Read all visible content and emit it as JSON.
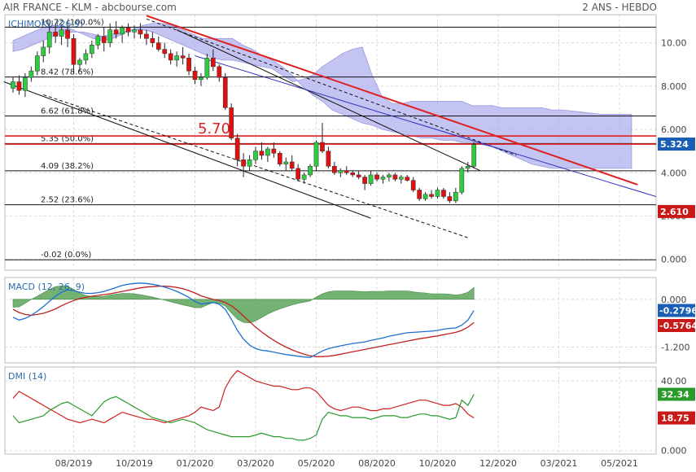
{
  "header": {
    "left": "AIR FRANCE - KLM - abcbourse.com",
    "right": "2 ANS - HEBDO"
  },
  "colors": {
    "up": "#2ecc40",
    "down": "#e01010",
    "cloud": "#b0b0ee",
    "resistance": "#e02020",
    "trend_blue": "#3030c0",
    "macd_line": "#1f6fd0",
    "signal_line": "#c02020",
    "histogram": "#5aa55a",
    "di_plus": "#2a9a2a",
    "di_minus": "#d02020",
    "panel_label": "#2b6cb0"
  },
  "chart_data": [
    {
      "type": "candlestick",
      "name": "price",
      "label": "ICHIMOKU (26,9)",
      "ylim": [
        -0.5,
        11.3
      ],
      "yticks": [
        "0.000",
        "2.000",
        "4.000",
        "6.000",
        "8.000",
        "10.00"
      ],
      "ytick_values": [
        0,
        2,
        4,
        6,
        8,
        10
      ],
      "xtick_labels": [
        "08/2019",
        "10/2019",
        "01/2020",
        "03/2020",
        "05/2020",
        "08/2020",
        "10/2020",
        "12/2020",
        "03/2021",
        "05/2021"
      ],
      "xtick_weeks": [
        10,
        20,
        30,
        40,
        50,
        60,
        70,
        80,
        90,
        100
      ],
      "fib_levels": [
        {
          "value": 10.72,
          "label": "10.72  (100.0%)"
        },
        {
          "value": 8.42,
          "label": "8.42  (78.6%)"
        },
        {
          "value": 6.62,
          "label": "6.62  (61.8%)"
        },
        {
          "value": 5.35,
          "label": "5.35  (50.0%)"
        },
        {
          "value": 4.09,
          "label": "4.09  (38.2%)"
        },
        {
          "value": 2.52,
          "label": "2.52  (23.6%)"
        },
        {
          "value": -0.02,
          "label": "-0.02  (0.0%)"
        }
      ],
      "resistance_levels": [
        5.7,
        5.324
      ],
      "annotation": "5.70",
      "last_price": "5.324",
      "support_marker": "2.610",
      "candles": [
        [
          7.9,
          8.4,
          7.7,
          8.2
        ],
        [
          8.2,
          8.5,
          7.6,
          7.8
        ],
        [
          7.8,
          8.6,
          7.5,
          8.4
        ],
        [
          8.4,
          8.9,
          8.2,
          8.7
        ],
        [
          8.7,
          9.6,
          8.5,
          9.4
        ],
        [
          9.4,
          10.1,
          9.1,
          9.8
        ],
        [
          9.8,
          10.9,
          9.5,
          10.5
        ],
        [
          10.5,
          10.9,
          10.0,
          10.3
        ],
        [
          10.3,
          10.8,
          9.9,
          10.6
        ],
        [
          10.6,
          10.8,
          9.8,
          10.2
        ],
        [
          10.2,
          10.4,
          8.6,
          9.0
        ],
        [
          9.0,
          9.3,
          8.7,
          9.2
        ],
        [
          9.2,
          9.7,
          9.0,
          9.5
        ],
        [
          9.5,
          10.1,
          9.3,
          9.9
        ],
        [
          9.9,
          10.4,
          9.7,
          10.3
        ],
        [
          10.3,
          10.7,
          9.6,
          10.0
        ],
        [
          10.0,
          10.9,
          9.8,
          10.6
        ],
        [
          10.6,
          11.0,
          10.2,
          10.4
        ],
        [
          10.4,
          10.8,
          10.0,
          10.7
        ],
        [
          10.7,
          10.9,
          10.3,
          10.5
        ],
        [
          10.5,
          10.8,
          10.2,
          10.6
        ],
        [
          10.6,
          10.9,
          10.2,
          10.4
        ],
        [
          10.4,
          10.6,
          9.9,
          10.2
        ],
        [
          10.2,
          10.5,
          9.8,
          10.0
        ],
        [
          10.0,
          10.3,
          9.6,
          9.7
        ],
        [
          9.7,
          10.0,
          9.3,
          9.5
        ],
        [
          9.5,
          9.7,
          9.0,
          9.2
        ],
        [
          9.2,
          9.6,
          8.9,
          9.4
        ],
        [
          9.4,
          9.8,
          9.0,
          9.3
        ],
        [
          9.3,
          9.5,
          8.5,
          8.7
        ],
        [
          8.7,
          8.9,
          8.1,
          8.3
        ],
        [
          8.3,
          8.6,
          8.0,
          8.4
        ],
        [
          8.4,
          9.5,
          8.3,
          9.3
        ],
        [
          9.3,
          9.7,
          8.7,
          8.9
        ],
        [
          8.9,
          9.0,
          8.2,
          8.4
        ],
        [
          8.4,
          8.6,
          6.9,
          7.0
        ],
        [
          7.0,
          7.2,
          5.5,
          5.6
        ],
        [
          5.6,
          5.8,
          4.3,
          4.6
        ],
        [
          4.6,
          4.9,
          3.8,
          4.3
        ],
        [
          4.3,
          4.8,
          4.1,
          4.6
        ],
        [
          4.6,
          5.2,
          4.4,
          5.0
        ],
        [
          5.0,
          5.4,
          4.6,
          4.8
        ],
        [
          4.8,
          5.2,
          4.5,
          5.1
        ],
        [
          5.1,
          5.4,
          4.7,
          4.9
        ],
        [
          4.9,
          5.0,
          4.3,
          4.4
        ],
        [
          4.4,
          4.7,
          4.1,
          4.5
        ],
        [
          4.5,
          4.8,
          4.1,
          4.2
        ],
        [
          4.2,
          4.4,
          3.6,
          3.7
        ],
        [
          3.7,
          4.0,
          3.5,
          3.9
        ],
        [
          3.9,
          4.4,
          3.8,
          4.3
        ],
        [
          4.3,
          5.5,
          4.1,
          5.4
        ],
        [
          5.4,
          6.3,
          4.9,
          5.0
        ],
        [
          5.0,
          5.2,
          4.2,
          4.3
        ],
        [
          4.3,
          4.5,
          3.9,
          4.0
        ],
        [
          4.0,
          4.2,
          3.8,
          4.1
        ],
        [
          4.1,
          4.3,
          3.9,
          4.0
        ],
        [
          4.0,
          4.1,
          3.8,
          3.9
        ],
        [
          3.9,
          4.1,
          3.7,
          3.8
        ],
        [
          3.8,
          3.9,
          3.2,
          3.5
        ],
        [
          3.5,
          4.1,
          3.4,
          3.9
        ],
        [
          3.9,
          4.0,
          3.6,
          3.7
        ],
        [
          3.7,
          3.9,
          3.5,
          3.8
        ],
        [
          3.8,
          4.0,
          3.6,
          3.9
        ],
        [
          3.9,
          4.0,
          3.6,
          3.7
        ],
        [
          3.7,
          3.9,
          3.5,
          3.8
        ],
        [
          3.8,
          3.9,
          3.6,
          3.65
        ],
        [
          3.65,
          3.8,
          3.1,
          3.2
        ],
        [
          3.2,
          3.3,
          2.7,
          2.8
        ],
        [
          2.8,
          3.1,
          2.7,
          3.0
        ],
        [
          3.0,
          3.2,
          2.8,
          2.9
        ],
        [
          2.9,
          3.3,
          2.8,
          3.2
        ],
        [
          3.2,
          3.3,
          2.8,
          2.9
        ],
        [
          2.9,
          3.1,
          2.6,
          2.7
        ],
        [
          2.7,
          3.3,
          2.6,
          3.1
        ],
        [
          3.1,
          4.3,
          3.0,
          4.2
        ],
        [
          4.2,
          4.5,
          4.0,
          4.3
        ],
        [
          4.3,
          5.4,
          4.2,
          5.3
        ]
      ],
      "cloud_a": [
        9.6,
        9.7,
        9.9,
        10.1,
        10.3,
        10.4,
        10.5,
        10.5,
        10.4,
        10.3,
        10.4,
        10.5,
        10.6,
        10.6,
        10.5,
        10.3,
        10.1,
        9.9,
        9.7,
        9.5,
        9.3,
        9.2,
        9.2,
        9.1,
        9.0,
        8.9,
        8.8,
        8.5,
        8.2,
        8.3,
        8.5,
        8.9,
        9.2,
        9.5,
        9.7,
        9.8,
        8.5,
        7.5,
        7.2,
        7.2,
        7.3,
        7.3,
        7.3,
        7.3,
        7.3,
        7.3,
        7.1,
        7.1,
        7.1,
        7.0,
        7.0,
        7.0,
        7.0,
        7.0,
        6.9,
        6.9,
        6.85,
        6.8,
        6.75,
        6.7,
        6.7,
        6.7,
        6.7
      ],
      "cloud_b": [
        10.1,
        10.3,
        10.5,
        10.7,
        10.8,
        10.8,
        10.6,
        10.4,
        10.2,
        10.1,
        10.2,
        10.4,
        10.6,
        10.8,
        10.9,
        10.9,
        10.8,
        10.6,
        10.4,
        10.2,
        10.2,
        10.2,
        10.2,
        9.9,
        9.7,
        9.4,
        9.2,
        8.9,
        8.5,
        8.0,
        7.6,
        7.3,
        6.9,
        6.7,
        6.5,
        6.3,
        6.2,
        6.0,
        5.9,
        5.8,
        5.7,
        5.6,
        5.6,
        5.5,
        5.5,
        5.4,
        5.4,
        5.3,
        5.2,
        5.0,
        4.8,
        4.6,
        4.4,
        4.3,
        4.2,
        4.2,
        4.2,
        4.2,
        4.2,
        4.2,
        4.2,
        4.2,
        4.2
      ],
      "cloud_start_week": 0,
      "cloud_end_week": 102
    },
    {
      "type": "line",
      "name": "macd",
      "label": "MACD (12, 26, 9)",
      "ylim": [
        -1.6,
        0.55
      ],
      "yticks": [
        "0.000",
        "-1.200"
      ],
      "ytick_values": [
        0,
        -1.2
      ],
      "macd_last": "-0.2796",
      "signal_last": "-0.5764",
      "macd": [
        -0.45,
        -0.52,
        -0.48,
        -0.4,
        -0.3,
        -0.18,
        -0.05,
        0.08,
        0.18,
        0.24,
        0.22,
        0.18,
        0.15,
        0.15,
        0.17,
        0.2,
        0.25,
        0.3,
        0.35,
        0.38,
        0.4,
        0.41,
        0.4,
        0.38,
        0.35,
        0.31,
        0.26,
        0.2,
        0.13,
        0.05,
        -0.05,
        -0.12,
        -0.1,
        -0.08,
        -0.12,
        -0.25,
        -0.5,
        -0.78,
        -1.0,
        -1.15,
        -1.24,
        -1.28,
        -1.3,
        -1.33,
        -1.36,
        -1.39,
        -1.41,
        -1.43,
        -1.45,
        -1.46,
        -1.38,
        -1.3,
        -1.24,
        -1.2,
        -1.17,
        -1.14,
        -1.11,
        -1.09,
        -1.07,
        -1.03,
        -1.0,
        -0.97,
        -0.93,
        -0.9,
        -0.87,
        -0.84,
        -0.83,
        -0.82,
        -0.81,
        -0.8,
        -0.78,
        -0.75,
        -0.73,
        -0.72,
        -0.65,
        -0.52,
        -0.28
      ],
      "signal": [
        -0.25,
        -0.33,
        -0.38,
        -0.4,
        -0.38,
        -0.35,
        -0.3,
        -0.24,
        -0.16,
        -0.09,
        -0.03,
        0.02,
        0.05,
        0.08,
        0.1,
        0.12,
        0.14,
        0.17,
        0.2,
        0.23,
        0.26,
        0.29,
        0.31,
        0.32,
        0.33,
        0.33,
        0.32,
        0.3,
        0.27,
        0.22,
        0.16,
        0.09,
        0.04,
        0.0,
        -0.03,
        -0.08,
        -0.16,
        -0.28,
        -0.42,
        -0.56,
        -0.7,
        -0.82,
        -0.93,
        -1.03,
        -1.12,
        -1.2,
        -1.27,
        -1.33,
        -1.38,
        -1.42,
        -1.44,
        -1.44,
        -1.43,
        -1.41,
        -1.38,
        -1.35,
        -1.32,
        -1.29,
        -1.26,
        -1.23,
        -1.2,
        -1.17,
        -1.14,
        -1.11,
        -1.08,
        -1.05,
        -1.02,
        -0.99,
        -0.97,
        -0.94,
        -0.92,
        -0.89,
        -0.86,
        -0.83,
        -0.78,
        -0.7,
        -0.58
      ]
    },
    {
      "type": "line",
      "name": "dmi",
      "label": "DMI (14)",
      "ylim": [
        -2,
        48
      ],
      "yticks": [
        "40.00",
        "0.000"
      ],
      "ytick_values": [
        40,
        0
      ],
      "di_plus_last": "32.34",
      "di_minus_last": "18.75",
      "di_plus": [
        20,
        16,
        17,
        18,
        19,
        20,
        23,
        25,
        27,
        28,
        26,
        24,
        22,
        20,
        24,
        28,
        30,
        31,
        29,
        27,
        25,
        23,
        21,
        19,
        18,
        17,
        16,
        17,
        18,
        17,
        16,
        14,
        12,
        11,
        10,
        9,
        8,
        8,
        8,
        8,
        9,
        10,
        9,
        8,
        8,
        7,
        7,
        6,
        6,
        7,
        9,
        18,
        22,
        21,
        20,
        20,
        19,
        19,
        19,
        18,
        19,
        20,
        20,
        20,
        19,
        19,
        20,
        21,
        21,
        20,
        20,
        19,
        18,
        19,
        29,
        26,
        32.3
      ],
      "di_minus": [
        30,
        34,
        32,
        30,
        28,
        26,
        24,
        22,
        20,
        18,
        17,
        16,
        17,
        18,
        17,
        16,
        18,
        20,
        22,
        21,
        20,
        19,
        18,
        18,
        17,
        16,
        17,
        18,
        19,
        20,
        22,
        25,
        24,
        23,
        25,
        36,
        42,
        46,
        44,
        42,
        40,
        39,
        38,
        37,
        37,
        36,
        35,
        35,
        36,
        36,
        34,
        30,
        26,
        24,
        23,
        24,
        25,
        25,
        24,
        23,
        23,
        24,
        24,
        25,
        26,
        27,
        28,
        29,
        29,
        28,
        27,
        26,
        26,
        27,
        25,
        21,
        18.75
      ]
    }
  ]
}
